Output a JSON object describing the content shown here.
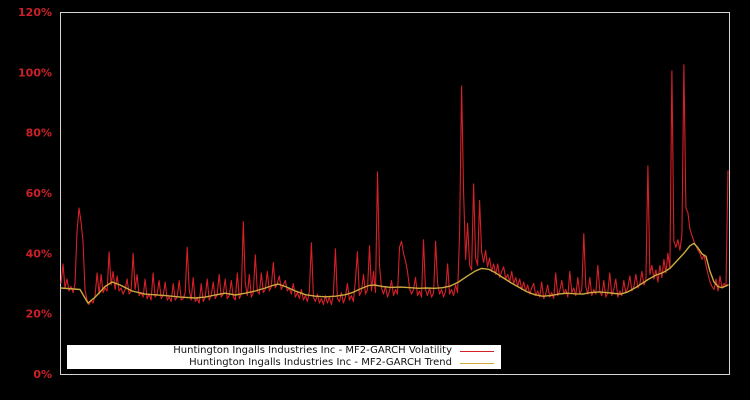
{
  "window": {
    "background": "#000000"
  },
  "chart": {
    "plot_border_color": "#d4d4d4",
    "axis_label_color": "#cb2027",
    "y_axis": {
      "ticks": [
        {
          "label": "0%",
          "value": 0
        },
        {
          "label": "20%",
          "value": 20
        },
        {
          "label": "40%",
          "value": 40
        },
        {
          "label": "60%",
          "value": 60
        },
        {
          "label": "80%",
          "value": 80
        },
        {
          "label": "100%",
          "value": 100
        },
        {
          "label": "120%",
          "value": 120
        }
      ]
    },
    "legend": {
      "background": "#ffffff",
      "position": "bottom-left-inside"
    }
  },
  "chart_data": {
    "type": "line",
    "title": "",
    "xlabel": "",
    "ylabel": "",
    "ylim": [
      0,
      120
    ],
    "y_tick_labels": [
      "0%",
      "20%",
      "40%",
      "60%",
      "80%",
      "100%",
      "120%"
    ],
    "x_axis_labels_visible": false,
    "grid": false,
    "legend_position": "bottom-left-inside",
    "unit": "percent",
    "series": [
      {
        "name": "Huntington Ingalls Industries Inc - MF2-GARCH Volatility",
        "color": "#d62027",
        "style": "jagged-daily-volatility",
        "values": [
          30,
          36.5,
          28.5,
          31.5,
          27.5,
          29,
          27,
          30,
          47,
          55,
          50.5,
          44,
          28,
          24.5,
          23,
          24.5,
          23.5,
          26,
          33.5,
          26.5,
          33,
          27,
          28.5,
          27.5,
          40.5,
          29.5,
          34,
          28,
          32.5,
          27.5,
          28.5,
          26.5,
          28,
          31.5,
          26.5,
          27.5,
          40,
          28,
          33,
          26,
          27,
          25.5,
          31.5,
          25,
          26.5,
          24.5,
          33.5,
          25.5,
          26.5,
          31,
          25,
          26,
          30.5,
          24.5,
          25.5,
          24,
          30,
          24.5,
          25.5,
          31,
          24.5,
          25,
          27,
          42,
          28,
          24.5,
          32,
          24,
          25,
          23.5,
          30,
          24,
          25.5,
          31.5,
          24.5,
          26,
          30.5,
          25,
          26.5,
          33,
          25.5,
          26.5,
          31.5,
          25,
          26,
          31,
          25.5,
          24.5,
          33.5,
          25,
          26.5,
          50.5,
          30,
          26,
          33,
          25.5,
          27,
          39.5,
          27.5,
          26.5,
          33.5,
          27,
          28,
          34,
          27.5,
          29,
          37,
          28.5,
          30,
          32.5,
          28,
          29.5,
          31,
          27.5,
          28.5,
          26.5,
          30,
          25.5,
          27,
          25,
          28,
          24.5,
          26,
          24,
          27.5,
          43.5,
          25.5,
          24,
          26.5,
          23.5,
          25,
          23,
          26,
          23.5,
          25.5,
          23,
          26.5,
          41.5,
          25,
          24,
          27,
          23.5,
          25.5,
          30,
          24.5,
          26,
          24,
          31,
          40.5,
          26,
          27.5,
          33,
          26.5,
          28,
          42.5,
          27.5,
          34,
          27,
          67,
          36,
          28.5,
          26.5,
          29,
          25.5,
          27.5,
          31,
          26,
          28,
          26.5,
          42,
          44,
          40,
          37.5,
          34,
          28.5,
          26.5,
          28,
          32,
          26,
          27.5,
          25.5,
          44.5,
          28,
          26,
          28.5,
          25.5,
          27,
          44,
          30,
          26.5,
          28,
          25.5,
          27.5,
          36.5,
          26.5,
          28,
          26,
          29.5,
          27,
          46.5,
          95.5,
          60,
          38,
          50,
          36,
          34.5,
          63,
          38.5,
          36,
          57.5,
          40.5,
          37,
          41,
          35.5,
          38.5,
          34,
          36.5,
          33,
          36.5,
          32,
          34,
          35.5,
          31.5,
          33,
          30.5,
          34,
          30,
          32,
          29,
          31.5,
          28,
          30.5,
          27.5,
          29.5,
          26.5,
          28.5,
          30,
          26,
          27.5,
          25.5,
          30.5,
          25,
          26.5,
          29.5,
          25.5,
          27,
          25,
          33.5,
          26,
          27.5,
          31,
          26.5,
          28,
          25.5,
          34,
          27,
          28.5,
          26,
          32,
          26.5,
          28,
          46.5,
          29,
          26.5,
          32,
          26,
          28,
          26.5,
          36,
          27.5,
          26,
          31,
          25.5,
          27,
          33.5,
          26,
          28,
          31.5,
          25.5,
          27.5,
          26,
          31,
          27,
          28.5,
          32.5,
          27.5,
          29,
          33,
          28.5,
          30,
          34,
          29.5,
          31,
          69,
          33,
          36,
          31.5,
          34.5,
          30.5,
          36,
          32,
          38,
          33.5,
          40,
          35,
          100.5,
          44,
          42,
          44.5,
          41,
          46,
          102.5,
          55,
          53.5,
          48,
          46,
          44,
          42.5,
          41,
          40,
          38,
          39.5,
          36,
          33,
          30.5,
          29,
          28,
          31.5,
          27.5,
          32.5,
          28.5,
          30,
          29,
          67.5
        ]
      },
      {
        "name": "Huntington Ingalls Industries Inc - MF2-GARCH Trend",
        "color": "#ccaa3e",
        "style": "smooth-trend",
        "anchor_x_index": [
          0,
          9.5,
          13.5,
          17,
          22,
          25.5,
          29.5,
          35.5,
          42,
          52,
          59.5,
          67,
          72,
          77,
          82,
          87,
          92,
          97,
          102,
          105.5,
          108.5,
          112,
          117,
          122,
          127,
          132,
          137,
          142,
          145.5,
          149.5,
          153.5,
          156.5,
          160.5,
          164.5,
          169.5,
          174.5,
          178.5,
          182.5,
          186.5,
          190.5,
          194.5,
          198.5,
          202.5,
          206.5,
          210,
          213.5,
          217,
          220.5,
          224.5,
          228.5,
          232.5,
          236.5,
          240.5,
          244.5,
          248.5,
          252.5,
          256.5,
          260.5,
          264.5,
          268.5,
          272.5,
          276.5,
          279.5,
          283,
          286.5,
          290,
          293.5,
          297,
          300.5,
          304,
          307.5,
          311,
          314,
          316,
          318,
          320,
          322,
          324,
          326,
          328,
          330,
          332,
          333
        ],
        "anchor_values": [
          28.5,
          28,
          23.5,
          25.5,
          29,
          30.5,
          29.5,
          27.5,
          26.5,
          26,
          25.5,
          25.2,
          25.5,
          26.2,
          26.8,
          26.2,
          26.8,
          27.5,
          28.5,
          29.3,
          29.8,
          29,
          27.5,
          26.3,
          25.8,
          25.6,
          25.8,
          26.3,
          27,
          28.2,
          29.3,
          29.5,
          29,
          28.7,
          28.8,
          28.6,
          28.4,
          28.5,
          28.4,
          28.6,
          29.2,
          30.5,
          32.3,
          34,
          35,
          34.7,
          33.5,
          32,
          30.3,
          28.8,
          27.3,
          26.3,
          25.8,
          26,
          26.5,
          26.8,
          26.6,
          26.5,
          27,
          27.2,
          27,
          26.7,
          26.5,
          27.2,
          28.5,
          30,
          31.5,
          32.8,
          33.6,
          35,
          37.5,
          40,
          42.5,
          43.3,
          41.8,
          39.8,
          39,
          34,
          30.5,
          29,
          28.6,
          29.2,
          29.5
        ]
      }
    ]
  }
}
